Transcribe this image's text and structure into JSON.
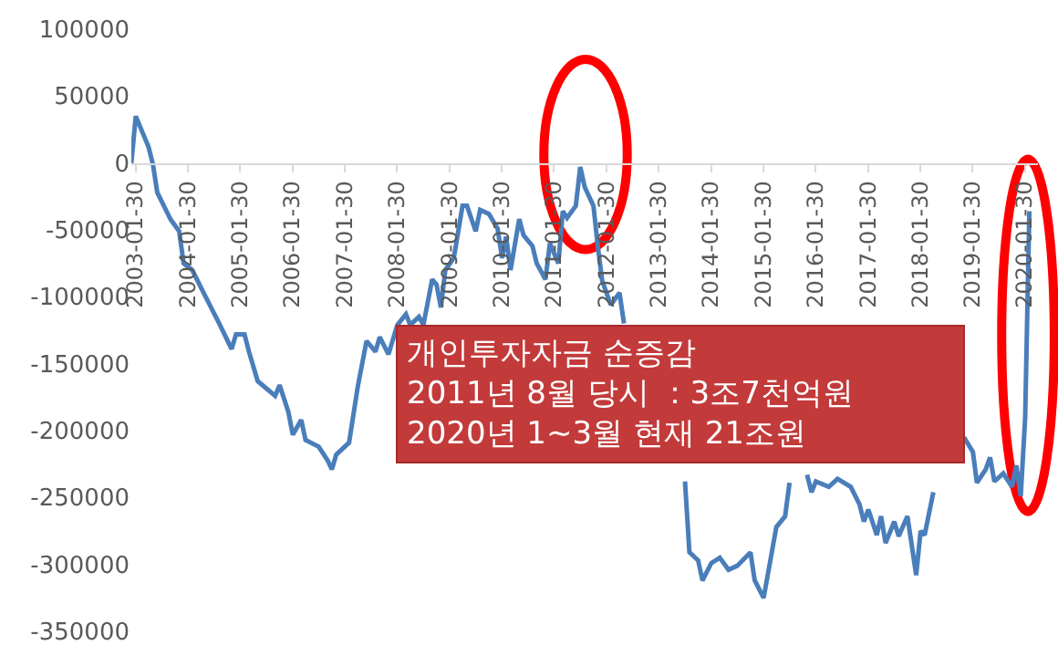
{
  "chart_data": {
    "type": "line",
    "x": [
      "2003-01",
      "2003-02",
      "2003-05",
      "2003-06",
      "2003-07",
      "2003-10",
      "2003-12",
      "2004-01",
      "2004-03",
      "2004-05",
      "2004-07",
      "2004-09",
      "2004-12",
      "2005-01",
      "2005-03",
      "2005-04",
      "2005-06",
      "2005-10",
      "2005-11",
      "2006-01",
      "2006-02",
      "2006-04",
      "2006-05",
      "2006-08",
      "2006-10",
      "2006-11",
      "2006-12",
      "2007-03",
      "2007-05",
      "2007-07",
      "2007-09",
      "2007-10",
      "2007-12",
      "2008-02",
      "2008-04",
      "2008-05",
      "2008-07",
      "2008-08",
      "2008-10",
      "2008-11",
      "2008-12",
      "2009-01",
      "2009-03",
      "2009-05",
      "2009-06",
      "2009-08",
      "2009-09",
      "2009-11",
      "2010-01",
      "2010-02",
      "2010-03",
      "2010-04",
      "2010-06",
      "2010-07",
      "2010-09",
      "2010-10",
      "2010-12",
      "2011-01",
      "2011-03",
      "2011-04",
      "2011-05",
      "2011-07",
      "2011-08",
      "2011-09",
      "2011-11",
      "2011-12",
      "2012-01",
      "2012-03",
      "2012-05",
      "2012-06",
      "2012-07",
      "2013-08",
      "2013-09",
      "2013-11",
      "2013-12",
      "2014-02",
      "2014-04",
      "2014-06",
      "2014-08",
      "2014-11",
      "2014-12",
      "2015-02",
      "2015-05",
      "2015-07",
      "2015-08",
      "2015-09",
      "2015-12",
      "2016-01",
      "2016-02",
      "2016-05",
      "2016-07",
      "2016-10",
      "2016-12",
      "2017-01",
      "2017-02",
      "2017-04",
      "2017-05",
      "2017-06",
      "2017-08",
      "2017-09",
      "2017-11",
      "2018-01",
      "2018-02",
      "2018-03",
      "2018-05",
      "2018-07",
      "2018-12",
      "2019-02",
      "2019-03",
      "2019-05",
      "2019-06",
      "2019-07",
      "2019-09",
      "2019-11",
      "2019-12",
      "2020-01",
      "2020-02",
      "2020-03"
    ],
    "series": [
      {
        "color": "#4a7ebb",
        "values": [
          0,
          35000,
          12000,
          -1000,
          -22000,
          -42000,
          -51000,
          -75000,
          -80000,
          -93000,
          -106000,
          -119000,
          -139000,
          -128000,
          -128000,
          -141000,
          -163000,
          -174000,
          -166000,
          -186000,
          -203000,
          -192000,
          -207000,
          -212000,
          -222000,
          -229000,
          -218000,
          -209000,
          -167000,
          -133000,
          -141000,
          -130000,
          -143000,
          -121000,
          -113000,
          -121000,
          -115000,
          -121000,
          -87000,
          -91000,
          -108000,
          -80000,
          -71000,
          -32000,
          -32000,
          -51000,
          -35000,
          -38000,
          -49000,
          -71000,
          -55000,
          -80000,
          -42000,
          -54000,
          -62000,
          -75000,
          -87000,
          -60000,
          -75000,
          -36000,
          -41000,
          -32000,
          -3000,
          -18000,
          -32000,
          -62000,
          -88000,
          -106000,
          -97000,
          -120000,
          null,
          -238000,
          -291000,
          -297000,
          -312000,
          -299000,
          -295000,
          -304000,
          -301000,
          -291000,
          -312000,
          -325000,
          -272000,
          -264000,
          -239000,
          null,
          -233000,
          -246000,
          -238000,
          -242000,
          -236000,
          -242000,
          -255000,
          -268000,
          -259000,
          -278000,
          -264000,
          -284000,
          -268000,
          -279000,
          -264000,
          -308000,
          -275000,
          -278000,
          -246000,
          null,
          -205000,
          -216000,
          -239000,
          -229000,
          -220000,
          -238000,
          -232000,
          -242000,
          -226000,
          -249000,
          -190000,
          -36000
        ]
      }
    ],
    "xlim": [
      "2003-01-01",
      "2020-04-30"
    ],
    "xticks": [
      "2003-01-30",
      "2004-01-30",
      "2005-01-30",
      "2006-01-30",
      "2007-01-30",
      "2008-01-30",
      "2009-01-30",
      "2010-01-30",
      "2011-01-30",
      "2012-01-30",
      "2013-01-30",
      "2014-01-30",
      "2015-01-30",
      "2016-01-30",
      "2017-01-30",
      "2018-01-30",
      "2019-01-30",
      "2020-01-30"
    ],
    "ylim": [
      -350000,
      100000
    ],
    "yticks": [
      -350000,
      -300000,
      -250000,
      -200000,
      -150000,
      -100000,
      -50000,
      0,
      50000,
      100000
    ],
    "grid": false,
    "marker": "none",
    "line_style": "solid",
    "annotations": [
      "개인투자자금 순증감\n2011년 8월 당시 ：3조7천억원\n2020년 1~3월 현재 21조원"
    ]
  }
}
